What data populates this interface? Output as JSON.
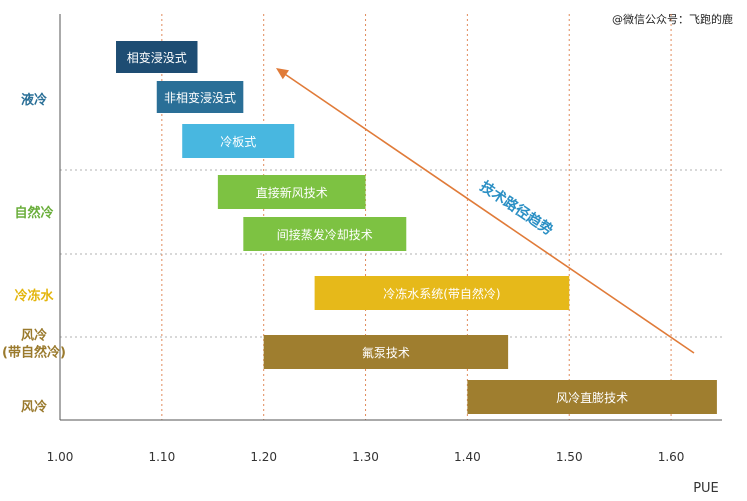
{
  "watermark": "@微信公众号：飞跑的鹿",
  "chart_data": {
    "type": "gantt-bar",
    "xlabel": "PUE",
    "xlim": [
      1.0,
      1.65
    ],
    "ticks": [
      "1.00",
      "1.10",
      "1.20",
      "1.30",
      "1.40",
      "1.50",
      "1.60"
    ],
    "tick_values": [
      1.0,
      1.1,
      1.2,
      1.3,
      1.4,
      1.5,
      1.6
    ],
    "grid": "vertical dotted at ticks",
    "categories": [
      {
        "label": "液冷",
        "color": "#2a6f97"
      },
      {
        "label": "自然冷",
        "color": "#6aae3b"
      },
      {
        "label": "冷冻水",
        "color": "#e3b50c"
      },
      {
        "label": "风冷\n(带自然冷)",
        "color": "#9a7a2d"
      },
      {
        "label": "风冷",
        "color": "#9a7a2d"
      }
    ],
    "bars": [
      {
        "label": "相变浸没式",
        "start": 1.055,
        "end": 1.135,
        "category": 0,
        "color": "#1e4d73"
      },
      {
        "label": "非相变浸没式",
        "start": 1.095,
        "end": 1.18,
        "category": 0,
        "color": "#2a6f97"
      },
      {
        "label": "冷板式",
        "start": 1.12,
        "end": 1.23,
        "category": 0,
        "color": "#48b7e0"
      },
      {
        "label": "直接新风技术",
        "start": 1.155,
        "end": 1.3,
        "category": 1,
        "color": "#7dc242"
      },
      {
        "label": "间接蒸发冷却技术",
        "start": 1.18,
        "end": 1.34,
        "category": 1,
        "color": "#7dc242"
      },
      {
        "label": "冷冻水系统(带自然冷)",
        "start": 1.25,
        "end": 1.5,
        "category": 2,
        "color": "#e6b91a"
      },
      {
        "label": "氟泵技术",
        "start": 1.2,
        "end": 1.44,
        "category": 3,
        "color": "#9f7e2f"
      },
      {
        "label": "风冷直膨技术",
        "start": 1.4,
        "end": 1.645,
        "category": 4,
        "color": "#9f7e2f"
      }
    ],
    "trend": {
      "label": "技术路径趋势",
      "color": "#e07b39"
    }
  }
}
